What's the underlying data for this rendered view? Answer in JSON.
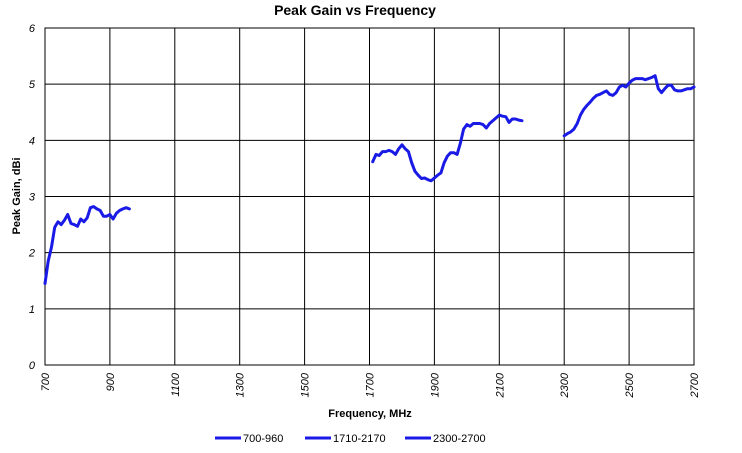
{
  "chart_data": {
    "type": "line",
    "title": "Peak Gain vs Frequency",
    "xlabel": "Frequency, MHz",
    "ylabel": "Peak Gain, dBi",
    "xlim": [
      700,
      2700
    ],
    "ylim": [
      0,
      6
    ],
    "xticks": [
      700,
      900,
      1100,
      1300,
      1500,
      1700,
      1900,
      2100,
      2300,
      2500,
      2700
    ],
    "yticks": [
      0,
      1,
      2,
      3,
      4,
      5,
      6
    ],
    "grid": true,
    "legend_position": "bottom",
    "line_color": "#1a1ae6",
    "series": [
      {
        "name": "700-960",
        "x": [
          700,
          710,
          720,
          730,
          740,
          750,
          760,
          770,
          780,
          790,
          800,
          810,
          820,
          830,
          840,
          850,
          860,
          870,
          880,
          890,
          900,
          910,
          920,
          930,
          940,
          950,
          960
        ],
        "y": [
          1.45,
          1.85,
          2.1,
          2.45,
          2.55,
          2.5,
          2.58,
          2.68,
          2.52,
          2.5,
          2.47,
          2.6,
          2.55,
          2.62,
          2.8,
          2.82,
          2.78,
          2.75,
          2.65,
          2.65,
          2.68,
          2.6,
          2.7,
          2.75,
          2.78,
          2.8,
          2.78
        ]
      },
      {
        "name": "1710-2170",
        "x": [
          1710,
          1720,
          1730,
          1740,
          1750,
          1760,
          1770,
          1780,
          1790,
          1800,
          1810,
          1820,
          1830,
          1840,
          1850,
          1860,
          1870,
          1880,
          1890,
          1900,
          1910,
          1920,
          1930,
          1940,
          1950,
          1960,
          1970,
          1980,
          1990,
          2000,
          2010,
          2020,
          2030,
          2040,
          2050,
          2060,
          2070,
          2080,
          2090,
          2100,
          2110,
          2120,
          2130,
          2140,
          2150,
          2160,
          2170
        ],
        "y": [
          3.62,
          3.75,
          3.73,
          3.8,
          3.8,
          3.82,
          3.8,
          3.75,
          3.85,
          3.92,
          3.85,
          3.8,
          3.6,
          3.45,
          3.38,
          3.32,
          3.33,
          3.3,
          3.28,
          3.33,
          3.38,
          3.42,
          3.6,
          3.72,
          3.78,
          3.78,
          3.75,
          3.95,
          4.2,
          4.28,
          4.25,
          4.3,
          4.3,
          4.3,
          4.28,
          4.22,
          4.3,
          4.35,
          4.4,
          4.45,
          4.43,
          4.42,
          4.32,
          4.38,
          4.38,
          4.36,
          4.35
        ]
      },
      {
        "name": "2300-2700",
        "x": [
          2300,
          2310,
          2320,
          2330,
          2340,
          2350,
          2360,
          2370,
          2380,
          2390,
          2400,
          2410,
          2420,
          2430,
          2440,
          2450,
          2460,
          2470,
          2480,
          2490,
          2500,
          2510,
          2520,
          2530,
          2540,
          2550,
          2560,
          2570,
          2580,
          2590,
          2600,
          2610,
          2620,
          2630,
          2640,
          2650,
          2660,
          2670,
          2680,
          2690,
          2700
        ],
        "y": [
          4.08,
          4.12,
          4.15,
          4.2,
          4.3,
          4.45,
          4.55,
          4.62,
          4.68,
          4.75,
          4.8,
          4.82,
          4.85,
          4.88,
          4.82,
          4.8,
          4.85,
          4.95,
          4.98,
          4.95,
          5.02,
          5.07,
          5.1,
          5.1,
          5.1,
          5.08,
          5.1,
          5.12,
          5.15,
          4.92,
          4.85,
          4.92,
          4.98,
          4.98,
          4.9,
          4.88,
          4.88,
          4.9,
          4.92,
          4.92,
          4.95
        ]
      }
    ]
  }
}
